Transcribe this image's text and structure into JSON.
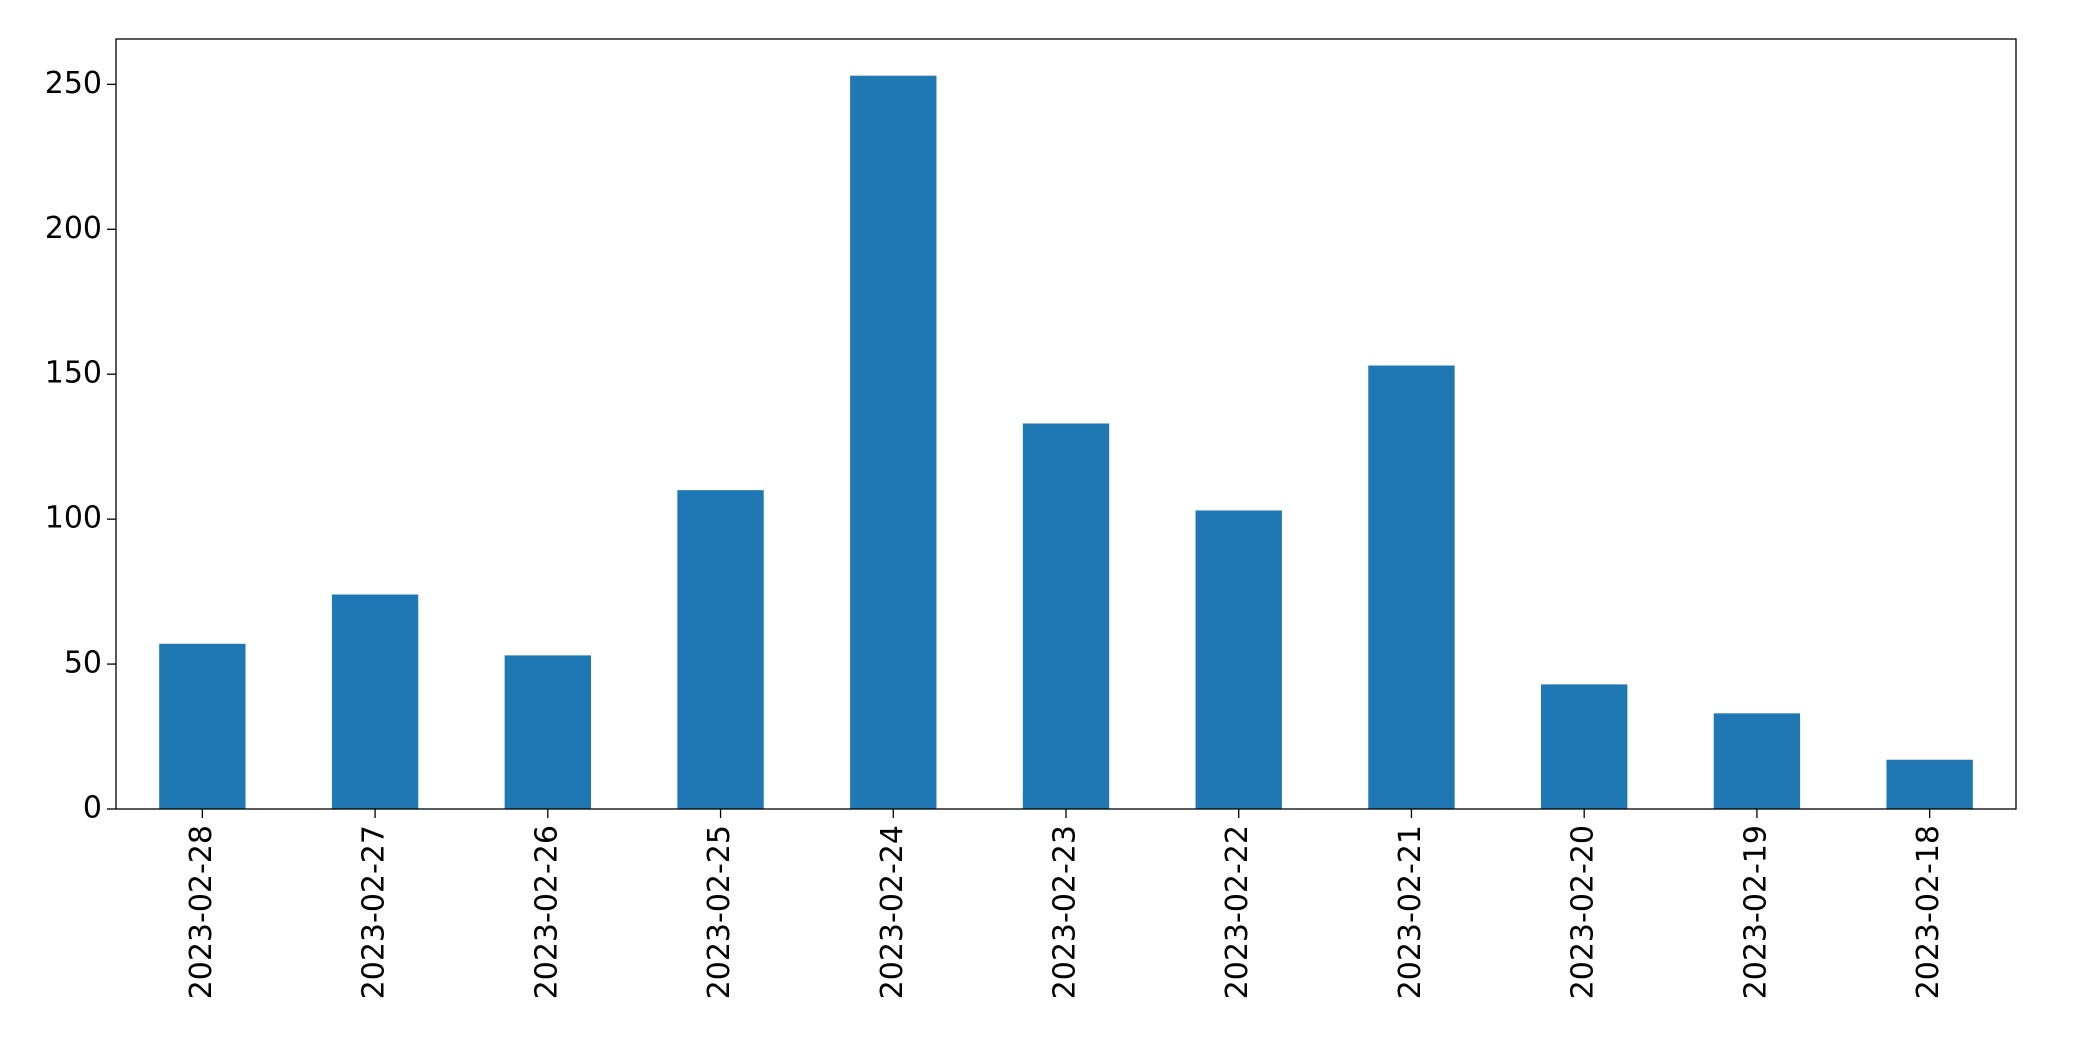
{
  "chart_data": {
    "type": "bar",
    "categories": [
      "2023-02-28",
      "2023-02-27",
      "2023-02-26",
      "2023-02-25",
      "2023-02-24",
      "2023-02-23",
      "2023-02-22",
      "2023-02-21",
      "2023-02-20",
      "2023-02-19",
      "2023-02-18"
    ],
    "values": [
      57,
      74,
      53,
      110,
      253,
      133,
      103,
      153,
      43,
      33,
      17
    ],
    "color": "#1f77b4",
    "ylim": [
      0,
      265.65
    ],
    "yticks": [
      0,
      50,
      100,
      150,
      200,
      250
    ],
    "grid": false
  }
}
